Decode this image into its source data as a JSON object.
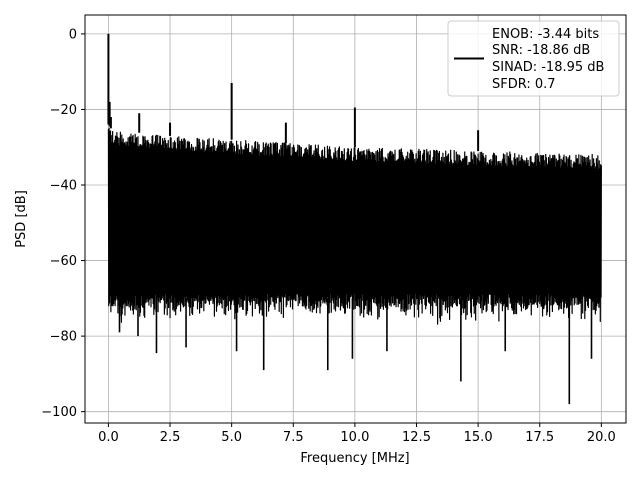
{
  "chart_data": {
    "type": "line",
    "title": "",
    "xlabel": "Frequency [MHz]",
    "ylabel": "PSD [dB]",
    "xlim": [
      -0.95,
      21.0
    ],
    "ylim": [
      -103.0,
      5.0
    ],
    "xticks": [
      0.0,
      2.5,
      5.0,
      7.5,
      10.0,
      12.5,
      15.0,
      17.5,
      20.0
    ],
    "xtick_labels": [
      "0.0",
      "2.5",
      "5.0",
      "7.5",
      "10.0",
      "12.5",
      "15.0",
      "17.5",
      "20.0"
    ],
    "yticks": [
      0,
      -20,
      -40,
      -60,
      -80,
      -100
    ],
    "ytick_labels": [
      "0",
      "−20",
      "−40",
      "−60",
      "−80",
      "−100"
    ],
    "grid": true,
    "legend": {
      "placement": "top-right",
      "line_color": "#000000",
      "entries": [
        "ENOB: -3.44 bits",
        "SNR: -18.86 dB",
        "SINAD: -18.95 dB",
        "SFDR: 0.7"
      ]
    },
    "series": [
      {
        "color": "#000000",
        "x_range": [
          0.0,
          20.0
        ],
        "noise_band": {
          "x": [
            0.0,
            0.1,
            0.5,
            1.0,
            2.5,
            5.0,
            10.0,
            15.0,
            20.0
          ],
          "top": [
            -24,
            -25,
            -26,
            -26,
            -27,
            -28,
            -30,
            -31,
            -32
          ],
          "bottom": [
            -68,
            -70,
            -71,
            -70,
            -70,
            -70,
            -70,
            -70,
            -70
          ]
        },
        "spikes": [
          {
            "x": 0.0,
            "y": 0.0
          },
          {
            "x": 0.05,
            "y": -18.0
          },
          {
            "x": 0.1,
            "y": -22.0
          },
          {
            "x": 1.25,
            "y": -21.0
          },
          {
            "x": 2.5,
            "y": -23.5
          },
          {
            "x": 5.0,
            "y": -13.0
          },
          {
            "x": 7.2,
            "y": -23.5
          },
          {
            "x": 10.0,
            "y": -19.5
          },
          {
            "x": 15.0,
            "y": -25.5
          }
        ],
        "dips": [
          {
            "x": 0.15,
            "y": -72
          },
          {
            "x": 0.45,
            "y": -79
          },
          {
            "x": 1.2,
            "y": -80
          },
          {
            "x": 1.95,
            "y": -84.5
          },
          {
            "x": 3.15,
            "y": -83
          },
          {
            "x": 5.2,
            "y": -84
          },
          {
            "x": 6.3,
            "y": -89
          },
          {
            "x": 8.9,
            "y": -89
          },
          {
            "x": 9.9,
            "y": -86
          },
          {
            "x": 11.3,
            "y": -84
          },
          {
            "x": 14.3,
            "y": -92
          },
          {
            "x": 16.1,
            "y": -84
          },
          {
            "x": 18.7,
            "y": -98
          },
          {
            "x": 19.6,
            "y": -86
          }
        ]
      }
    ]
  }
}
